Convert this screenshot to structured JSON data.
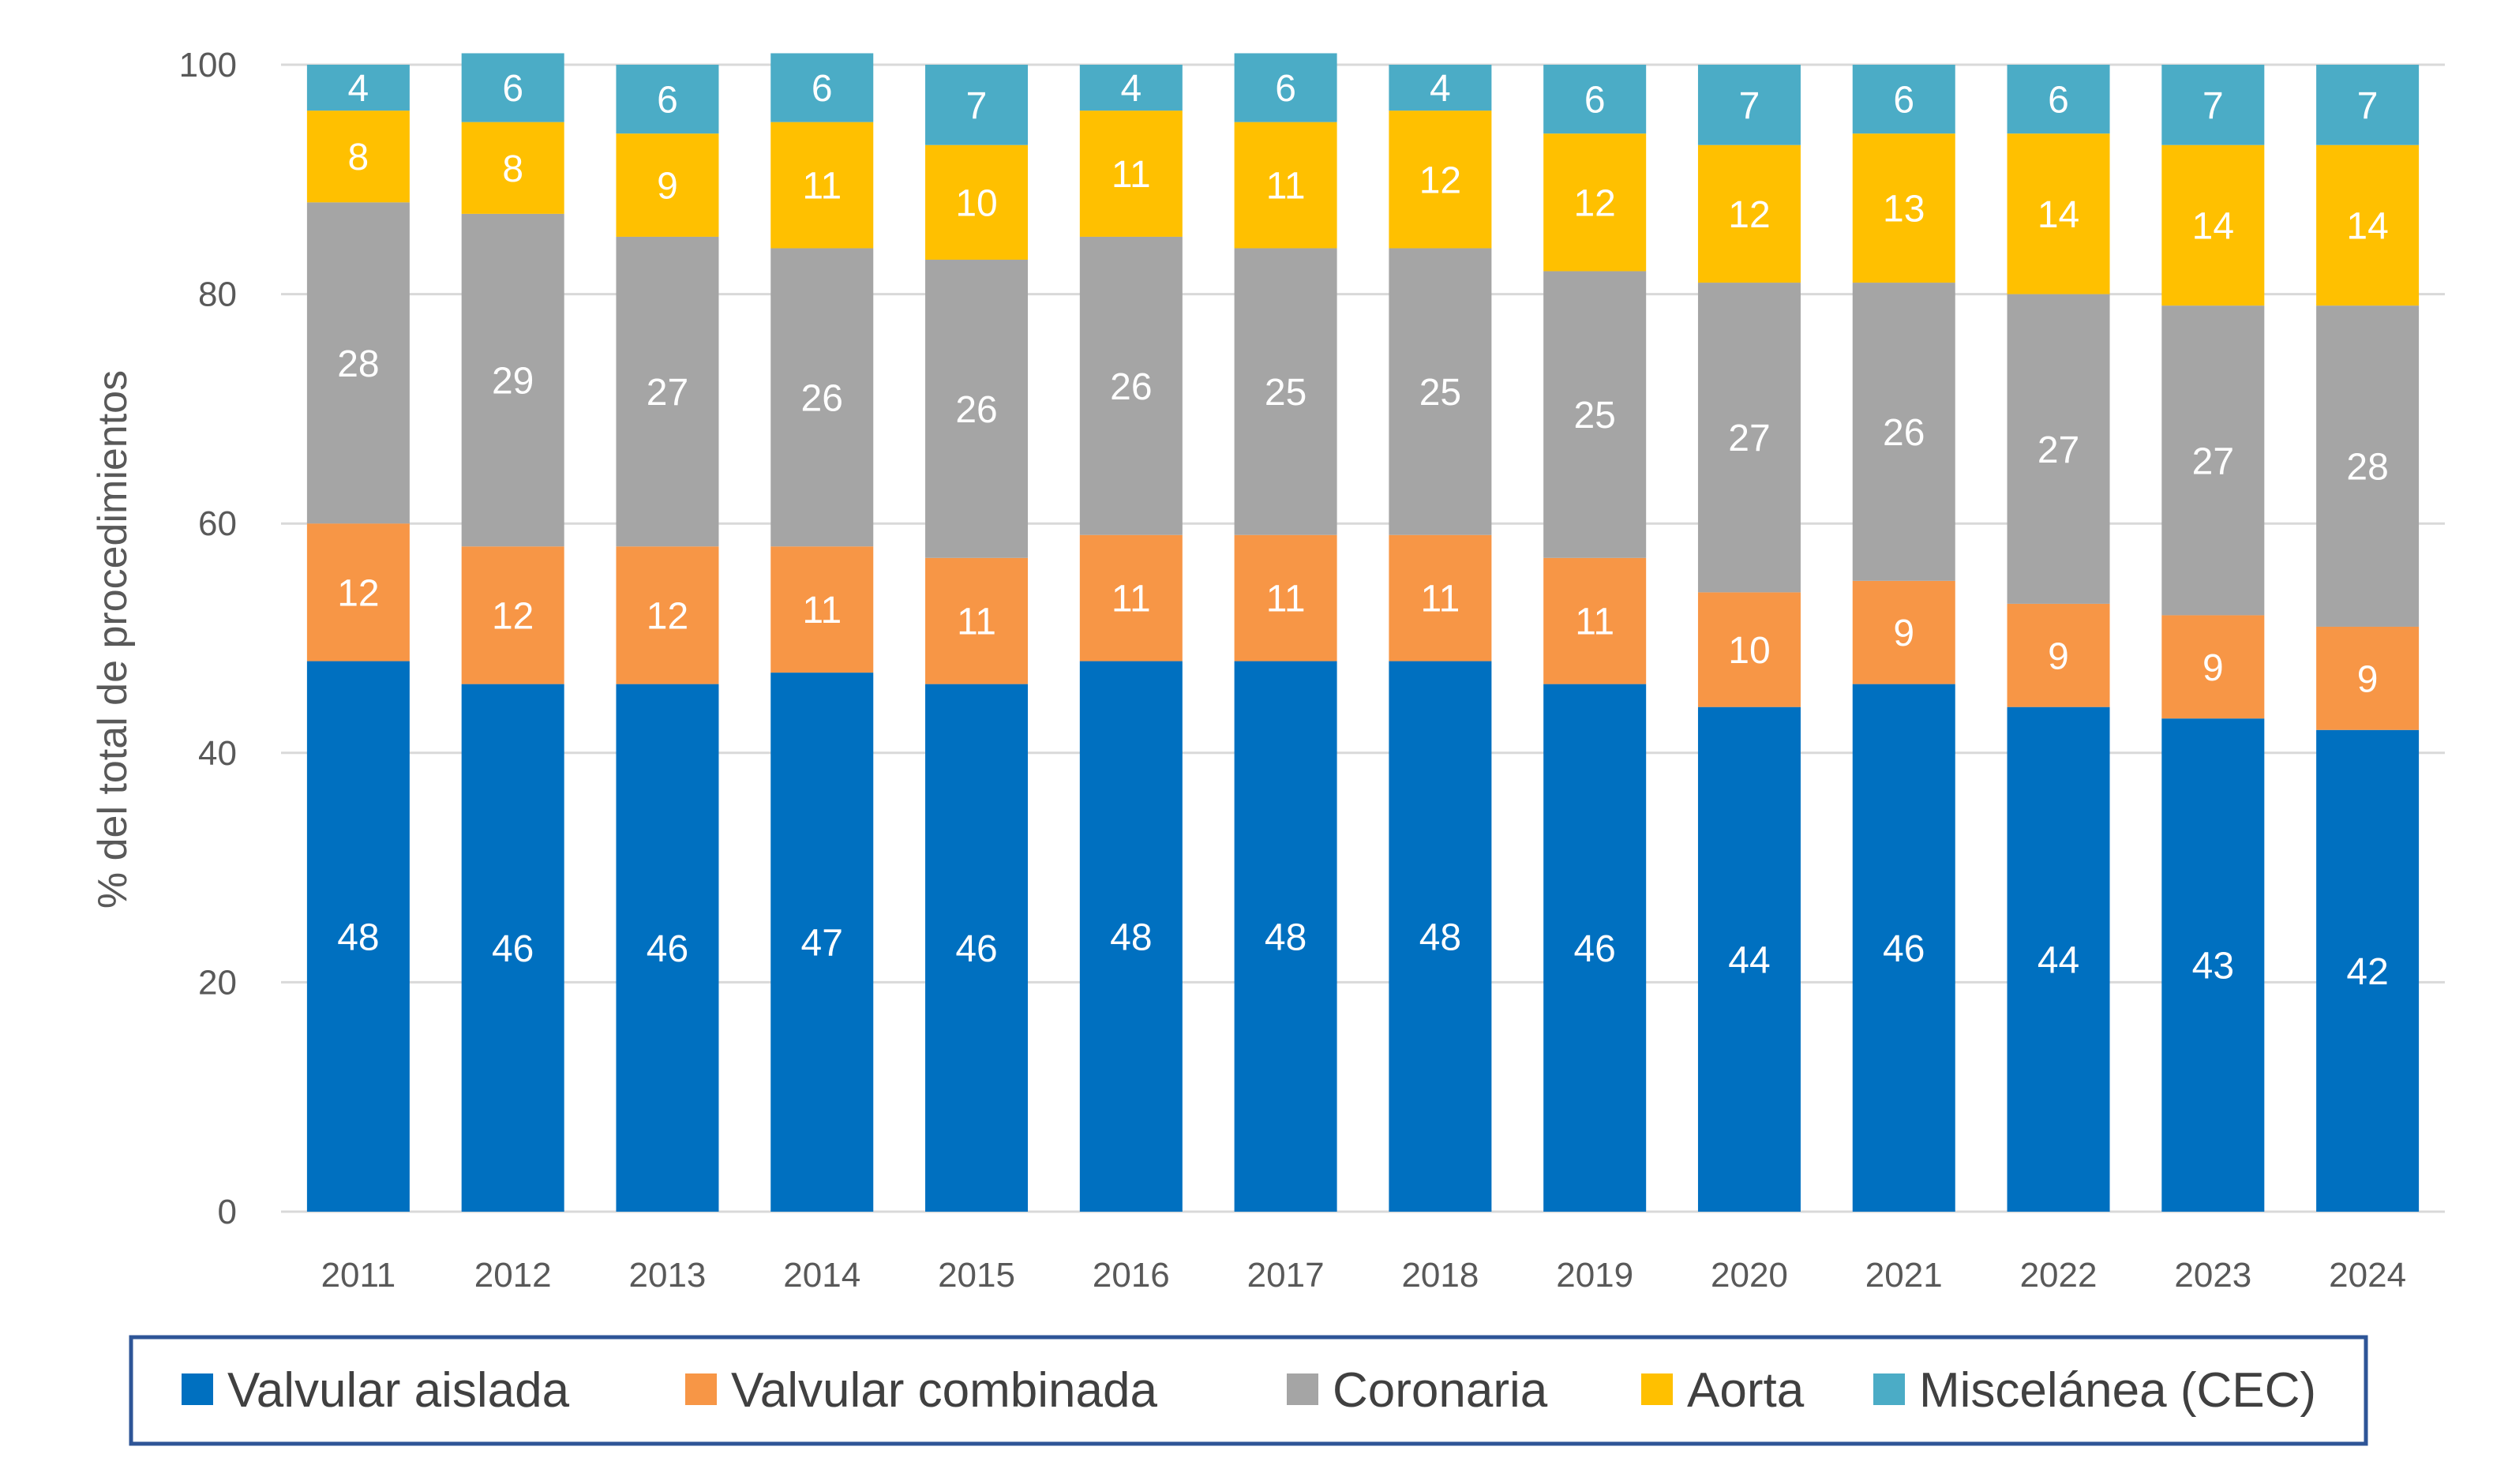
{
  "chart_data": {
    "type": "bar",
    "stacked": true,
    "ylabel": "% del total de procedimientos",
    "xlabel": "",
    "ylim": [
      0,
      100
    ],
    "yticks": [
      0,
      20,
      40,
      60,
      80,
      100
    ],
    "grid": true,
    "legend_position": "bottom",
    "categories": [
      "2011",
      "2012",
      "2013",
      "2014",
      "2015",
      "2016",
      "2017",
      "2018",
      "2019",
      "2020",
      "2021",
      "2022",
      "2023",
      "2024"
    ],
    "series": [
      {
        "name": "Valvular aislada",
        "color": "#0070C0",
        "values": [
          48,
          46,
          46,
          47,
          46,
          48,
          48,
          48,
          46,
          44,
          46,
          44,
          43,
          42
        ]
      },
      {
        "name": "Valvular combinada",
        "color": "#F79646",
        "values": [
          12,
          12,
          12,
          11,
          11,
          11,
          11,
          11,
          11,
          10,
          9,
          9,
          9,
          9
        ]
      },
      {
        "name": "Coronaria",
        "color": "#A5A5A5",
        "values": [
          28,
          29,
          27,
          26,
          26,
          26,
          25,
          25,
          25,
          27,
          26,
          27,
          27,
          28
        ]
      },
      {
        "name": "Aorta",
        "color": "#FFC000",
        "values": [
          8,
          8,
          9,
          11,
          10,
          11,
          11,
          12,
          12,
          12,
          13,
          14,
          14,
          14
        ]
      },
      {
        "name": "Miscelánea (CEC)",
        "color": "#4BACC6",
        "values": [
          4,
          6,
          6,
          6,
          7,
          4,
          6,
          4,
          6,
          7,
          6,
          6,
          7,
          7
        ]
      }
    ]
  }
}
